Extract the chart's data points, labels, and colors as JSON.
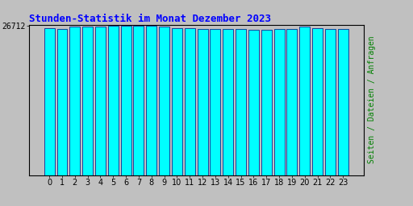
{
  "title": "Stunden-Statistik im Monat Dezember 2023",
  "ylabel": "Seiten / Dateien / Anfragen",
  "xlabel_values": [
    0,
    1,
    2,
    3,
    4,
    5,
    6,
    7,
    8,
    9,
    10,
    11,
    12,
    13,
    14,
    15,
    16,
    17,
    18,
    19,
    20,
    21,
    22,
    23
  ],
  "values": [
    26300,
    26200,
    26500,
    26550,
    26600,
    26650,
    26712,
    26680,
    26680,
    26500,
    26300,
    26250,
    26150,
    26100,
    26100,
    26100,
    26000,
    25950,
    26150,
    26180,
    26550,
    26250,
    26200,
    26200
  ],
  "ytick_label": "26712",
  "bar_color": "#00FFFF",
  "bar_edge_color": "#000080",
  "background_color": "#C0C0C0",
  "plot_bg_color": "#C0C0C0",
  "title_color": "#0000FF",
  "ylabel_color": "#008000",
  "ytick_color": "#000000",
  "xtick_color": "#000000",
  "title_fontsize": 9,
  "ylabel_fontsize": 7,
  "tick_fontsize": 7,
  "ymin": 0,
  "ymax": 26900
}
